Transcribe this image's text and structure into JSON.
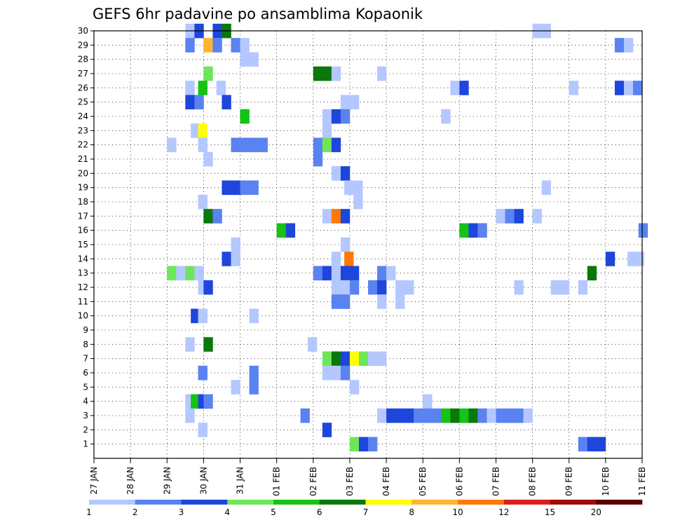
{
  "chart_data": {
    "type": "heatmap",
    "title": "GEFS 6hr padavine po ansamblima Kopaonik",
    "xlabel": "",
    "ylabel": "",
    "x_tick_labels": [
      "27 JAN",
      "28 JAN",
      "29 JAN",
      "30 JAN",
      "31 JAN",
      "01 FEB",
      "02 FEB",
      "03 FEB",
      "04 FEB",
      "05 FEB",
      "06 FEB",
      "07 FEB",
      "08 FEB",
      "09 FEB",
      "10 FEB",
      "11 FEB"
    ],
    "x_range_days": [
      0,
      15
    ],
    "x_step_days": 0.25,
    "y_tick_labels": [
      "1",
      "2",
      "3",
      "4",
      "5",
      "6",
      "7",
      "8",
      "9",
      "10",
      "11",
      "12",
      "13",
      "14",
      "15",
      "16",
      "17",
      "18",
      "19",
      "20",
      "21",
      "22",
      "23",
      "24",
      "25",
      "26",
      "27",
      "28",
      "29",
      "30"
    ],
    "y_range": [
      0,
      30
    ],
    "grid": true,
    "colorbar": {
      "labels": [
        "1",
        "2",
        "3",
        "4",
        "5",
        "6",
        "7",
        "8",
        "10",
        "12",
        "15",
        "20"
      ],
      "colors": [
        "#b4c8ff",
        "#5a82f0",
        "#1e46dc",
        "#6ee65a",
        "#14c314",
        "#0a780a",
        "#ffff00",
        "#ffb432",
        "#ff7800",
        "#dc1e1e",
        "#a00a0a",
        "#5a0000"
      ]
    },
    "cells_note": "each cell: [x start in days after 27 JAN, ensemble member (0 = control row), precipitation class index into colorbar]",
    "cells": [
      [
        2.5,
        30,
        0
      ],
      [
        2.75,
        30,
        2
      ],
      [
        3.25,
        30,
        2
      ],
      [
        3.5,
        30,
        5
      ],
      [
        12.0,
        30,
        0
      ],
      [
        12.25,
        30,
        0
      ],
      [
        2.5,
        29,
        1
      ],
      [
        3.0,
        29,
        7
      ],
      [
        3.25,
        29,
        1
      ],
      [
        3.75,
        29,
        1
      ],
      [
        4.0,
        29,
        0
      ],
      [
        14.25,
        29,
        1
      ],
      [
        14.5,
        29,
        0
      ],
      [
        4.0,
        28,
        0
      ],
      [
        4.25,
        28,
        0
      ],
      [
        3.0,
        27,
        3
      ],
      [
        6.0,
        27,
        5
      ],
      [
        6.25,
        27,
        5
      ],
      [
        6.5,
        27,
        0
      ],
      [
        7.75,
        27,
        0
      ],
      [
        2.5,
        26,
        0
      ],
      [
        2.85,
        26,
        4
      ],
      [
        3.35,
        26,
        0
      ],
      [
        9.75,
        26,
        0
      ],
      [
        10.0,
        26,
        2
      ],
      [
        13.0,
        26,
        0
      ],
      [
        14.25,
        26,
        2
      ],
      [
        14.5,
        26,
        0
      ],
      [
        14.75,
        26,
        1
      ],
      [
        2.5,
        25,
        2
      ],
      [
        2.75,
        25,
        1
      ],
      [
        3.5,
        25,
        2
      ],
      [
        6.75,
        25,
        0
      ],
      [
        7.0,
        25,
        0
      ],
      [
        4.0,
        24,
        4
      ],
      [
        6.25,
        24,
        0
      ],
      [
        6.5,
        24,
        2
      ],
      [
        6.75,
        24,
        1
      ],
      [
        9.5,
        24,
        0
      ],
      [
        2.65,
        23,
        0
      ],
      [
        2.85,
        23,
        6
      ],
      [
        6.25,
        23,
        0
      ],
      [
        2.0,
        22,
        0
      ],
      [
        2.85,
        22,
        0
      ],
      [
        3.75,
        22,
        1
      ],
      [
        4.0,
        22,
        1
      ],
      [
        4.25,
        22,
        1
      ],
      [
        4.5,
        22,
        1
      ],
      [
        6.0,
        22,
        1
      ],
      [
        6.25,
        22,
        3
      ],
      [
        6.5,
        22,
        2
      ],
      [
        3.0,
        21,
        0
      ],
      [
        6.0,
        21,
        1
      ],
      [
        6.5,
        20,
        0
      ],
      [
        6.75,
        20,
        2
      ],
      [
        3.5,
        19,
        2
      ],
      [
        3.75,
        19,
        2
      ],
      [
        4.0,
        19,
        1
      ],
      [
        4.25,
        19,
        1
      ],
      [
        6.85,
        19,
        0
      ],
      [
        7.1,
        19,
        0
      ],
      [
        12.25,
        19,
        0
      ],
      [
        2.85,
        18,
        0
      ],
      [
        7.1,
        18,
        0
      ],
      [
        3.0,
        17,
        5
      ],
      [
        3.25,
        17,
        1
      ],
      [
        6.25,
        17,
        0
      ],
      [
        6.5,
        17,
        8
      ],
      [
        6.75,
        17,
        2
      ],
      [
        11.0,
        17,
        0
      ],
      [
        11.25,
        17,
        1
      ],
      [
        11.5,
        17,
        2
      ],
      [
        12.0,
        17,
        0
      ],
      [
        5.0,
        16,
        4
      ],
      [
        5.25,
        16,
        2
      ],
      [
        10.0,
        16,
        4
      ],
      [
        10.25,
        16,
        2
      ],
      [
        10.5,
        16,
        1
      ],
      [
        14.9,
        16,
        1
      ],
      [
        3.75,
        15,
        0
      ],
      [
        6.75,
        15,
        0
      ],
      [
        3.5,
        14,
        2
      ],
      [
        3.75,
        14,
        0
      ],
      [
        6.5,
        14,
        0
      ],
      [
        6.85,
        14,
        8
      ],
      [
        14.0,
        14,
        2
      ],
      [
        14.6,
        14,
        0
      ],
      [
        14.8,
        14,
        0
      ],
      [
        2.0,
        13,
        3
      ],
      [
        2.25,
        13,
        0
      ],
      [
        2.5,
        13,
        3
      ],
      [
        2.75,
        13,
        0
      ],
      [
        6.0,
        13,
        1
      ],
      [
        6.25,
        13,
        2
      ],
      [
        6.5,
        13,
        0
      ],
      [
        6.75,
        13,
        2
      ],
      [
        7.0,
        13,
        2
      ],
      [
        7.75,
        13,
        1
      ],
      [
        8.0,
        13,
        0
      ],
      [
        13.5,
        13,
        5
      ],
      [
        2.85,
        12,
        0
      ],
      [
        3.0,
        12,
        2
      ],
      [
        6.5,
        12,
        0
      ],
      [
        6.75,
        12,
        0
      ],
      [
        7.0,
        12,
        1
      ],
      [
        7.5,
        12,
        1
      ],
      [
        7.75,
        12,
        2
      ],
      [
        8.25,
        12,
        0
      ],
      [
        8.5,
        12,
        0
      ],
      [
        11.5,
        12,
        0
      ],
      [
        12.5,
        12,
        0
      ],
      [
        12.75,
        12,
        0
      ],
      [
        13.25,
        12,
        0
      ],
      [
        6.5,
        11,
        1
      ],
      [
        6.75,
        11,
        1
      ],
      [
        7.75,
        11,
        0
      ],
      [
        8.25,
        11,
        0
      ],
      [
        2.65,
        10,
        2
      ],
      [
        2.85,
        10,
        0
      ],
      [
        4.25,
        10,
        0
      ],
      [
        2.5,
        8,
        0
      ],
      [
        3.0,
        8,
        5
      ],
      [
        5.85,
        8,
        0
      ],
      [
        6.25,
        7,
        3
      ],
      [
        6.5,
        7,
        5
      ],
      [
        6.75,
        7,
        2
      ],
      [
        7.0,
        7,
        6
      ],
      [
        7.25,
        7,
        3
      ],
      [
        7.5,
        7,
        0
      ],
      [
        7.75,
        7,
        0
      ],
      [
        2.85,
        6,
        1
      ],
      [
        6.25,
        6,
        0
      ],
      [
        6.5,
        6,
        0
      ],
      [
        6.75,
        6,
        1
      ],
      [
        4.25,
        6,
        1
      ],
      [
        3.75,
        5,
        0
      ],
      [
        4.25,
        5,
        1
      ],
      [
        7.0,
        5,
        0
      ],
      [
        2.5,
        4,
        0
      ],
      [
        2.65,
        4,
        4
      ],
      [
        2.85,
        4,
        2
      ],
      [
        3.0,
        4,
        1
      ],
      [
        9.0,
        4,
        0
      ],
      [
        2.5,
        3,
        0
      ],
      [
        5.65,
        3,
        1
      ],
      [
        7.75,
        3,
        0
      ],
      [
        8.0,
        3,
        2
      ],
      [
        8.25,
        3,
        2
      ],
      [
        8.5,
        3,
        2
      ],
      [
        8.75,
        3,
        1
      ],
      [
        9.0,
        3,
        1
      ],
      [
        9.25,
        3,
        1
      ],
      [
        9.5,
        3,
        4
      ],
      [
        9.75,
        3,
        5
      ],
      [
        10.0,
        3,
        4
      ],
      [
        10.25,
        3,
        5
      ],
      [
        10.5,
        3,
        1
      ],
      [
        10.75,
        3,
        0
      ],
      [
        11.0,
        3,
        1
      ],
      [
        11.25,
        3,
        1
      ],
      [
        11.5,
        3,
        1
      ],
      [
        11.75,
        3,
        0
      ],
      [
        2.85,
        2,
        0
      ],
      [
        6.25,
        2,
        2
      ],
      [
        7.0,
        1,
        3
      ],
      [
        7.25,
        1,
        2
      ],
      [
        7.5,
        1,
        1
      ],
      [
        13.25,
        1,
        1
      ],
      [
        13.5,
        1,
        2
      ],
      [
        13.75,
        1,
        2
      ]
    ]
  }
}
